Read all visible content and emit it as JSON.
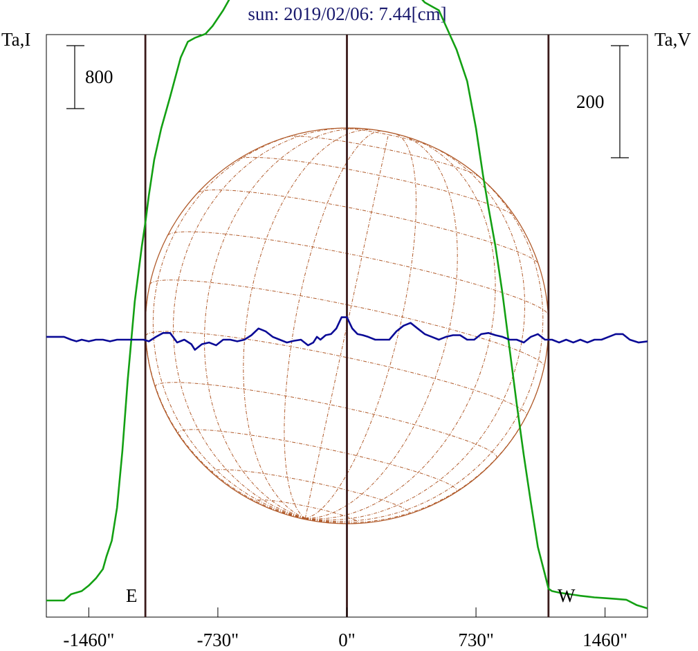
{
  "title": "sun: 2019/02/06: 7.44[cm]",
  "left_axis_label": "Ta,I",
  "right_axis_label": "Ta,V",
  "left_scale_label": "800",
  "right_scale_label": "200",
  "east_label": "E",
  "west_label": "W",
  "colors": {
    "title": "#1a1a6e",
    "stokes_i": "#13a013",
    "stokes_v": "#0a0a96",
    "disk": "#b05a2a",
    "limb_lines": "#3a1a1a",
    "axes": "#000000"
  },
  "chart_data": {
    "type": "line",
    "title": "sun: 2019/02/06: 7.44[cm]",
    "x_unit": "arcsec",
    "xlim": [
      -1700,
      1700
    ],
    "x_ticks": [
      -1460,
      -730,
      0,
      730,
      1460
    ],
    "x_tick_labels": [
      "-1460\"",
      "-730\"",
      "0\"",
      "730\"",
      "1460\""
    ],
    "limb_x": [
      -1140,
      0,
      1140
    ],
    "scale_bars": [
      {
        "axis": "left",
        "label": "800",
        "value": 800
      },
      {
        "axis": "right",
        "label": "200",
        "value": 200
      }
    ],
    "series": [
      {
        "name": "Ta,I",
        "axis": "left",
        "x": [
          -1700,
          -1600,
          -1560,
          -1500,
          -1460,
          -1420,
          -1380,
          -1360,
          -1330,
          -1300,
          -1270,
          -1240,
          -1200,
          -1160,
          -1140,
          -1120,
          -1090,
          -1050,
          -1000,
          -940,
          -900,
          -860,
          -800,
          -760,
          -700,
          -650,
          -600,
          -550,
          -500,
          -450,
          -400,
          -380,
          -350,
          -320,
          -300,
          -260,
          -220,
          -200,
          -175,
          -160,
          -140,
          -110,
          -90,
          -60,
          -30,
          0,
          30,
          60,
          90,
          120,
          150,
          180,
          220,
          260,
          300,
          350,
          400,
          440,
          480,
          520,
          560,
          620,
          680,
          730,
          770,
          800,
          840,
          880,
          920,
          960,
          1000,
          1040,
          1080,
          1120,
          1140,
          1160,
          1180,
          1200,
          1230,
          1260,
          1290,
          1320,
          1360,
          1400,
          1460,
          1520,
          1580,
          1640,
          1700
        ],
        "y": [
          0,
          0,
          80,
          120,
          190,
          280,
          400,
          560,
          760,
          1180,
          1900,
          2800,
          3800,
          4500,
          4800,
          5150,
          5600,
          6000,
          6400,
          6900,
          7100,
          7150,
          7200,
          7300,
          7500,
          7700,
          7900,
          8100,
          8400,
          8600,
          8250,
          8150,
          8400,
          9000,
          9200,
          9700,
          10200,
          10300,
          10000,
          9400,
          8850,
          8700,
          8500,
          8450,
          8300,
          8300,
          8250,
          8150,
          8100,
          8100,
          8180,
          8280,
          8280,
          8220,
          8250,
          8100,
          7700,
          7600,
          7550,
          7500,
          7300,
          7000,
          6600,
          6000,
          5400,
          5000,
          4500,
          3900,
          3200,
          2500,
          1850,
          1250,
          680,
          330,
          150,
          120,
          110,
          100,
          90,
          80,
          70,
          60,
          50,
          40,
          30,
          20,
          10,
          -60,
          -100
        ]
      },
      {
        "name": "Ta,V",
        "axis": "right",
        "x": [
          -1700,
          -1600,
          -1560,
          -1530,
          -1500,
          -1460,
          -1420,
          -1380,
          -1340,
          -1300,
          -1260,
          -1220,
          -1180,
          -1150,
          -1120,
          -1080,
          -1040,
          -1000,
          -960,
          -920,
          -880,
          -860,
          -820,
          -780,
          -740,
          -700,
          -660,
          -620,
          -580,
          -540,
          -500,
          -460,
          -420,
          -380,
          -340,
          -300,
          -260,
          -220,
          -190,
          -170,
          -150,
          -120,
          -90,
          -60,
          -30,
          0,
          30,
          60,
          90,
          120,
          160,
          200,
          240,
          280,
          320,
          360,
          400,
          440,
          480,
          520,
          560,
          600,
          640,
          680,
          720,
          760,
          800,
          840,
          880,
          920,
          960,
          1000,
          1040,
          1080,
          1120,
          1160,
          1200,
          1240,
          1280,
          1320,
          1360,
          1400,
          1440,
          1480,
          1520,
          1560,
          1600,
          1650,
          1700
        ],
        "y": [
          5,
          5,
          0,
          -3,
          0,
          -3,
          0,
          0,
          -3,
          0,
          0,
          0,
          0,
          0,
          -3,
          5,
          12,
          12,
          -5,
          0,
          -8,
          -18,
          -8,
          -5,
          -10,
          0,
          0,
          -3,
          0,
          8,
          20,
          15,
          5,
          0,
          -5,
          -2,
          0,
          -10,
          -5,
          5,
          0,
          8,
          10,
          20,
          40,
          40,
          20,
          10,
          8,
          5,
          0,
          0,
          0,
          15,
          25,
          30,
          20,
          10,
          5,
          0,
          5,
          8,
          8,
          0,
          0,
          10,
          12,
          8,
          5,
          0,
          0,
          -5,
          5,
          10,
          0,
          0,
          -5,
          0,
          -5,
          0,
          -5,
          0,
          0,
          5,
          10,
          10,
          0,
          -5,
          -3
        ]
      }
    ],
    "disk": {
      "center_x": 0,
      "radius": 1140,
      "grid": "heliographic",
      "lat_step_deg": 15,
      "lon_step_deg": 15
    },
    "grid": false
  }
}
